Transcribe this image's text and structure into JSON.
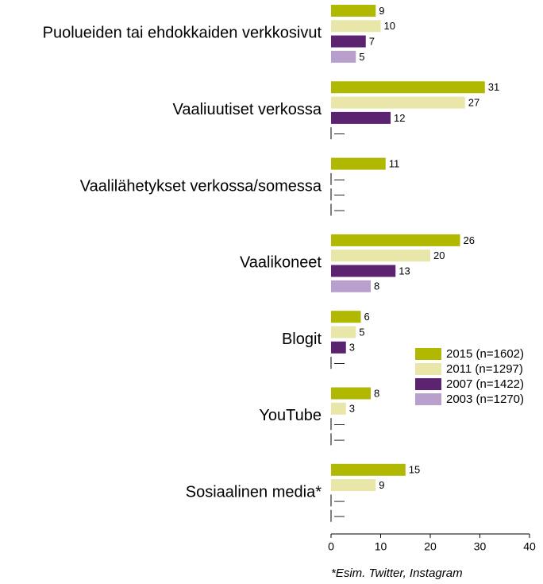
{
  "chart_data": {
    "type": "bar",
    "orientation": "horizontal",
    "categories": [
      "Puolueiden tai ehdokkaiden verkkosivut",
      "Vaaliuutiset verkossa",
      "Vaalilähetykset verkossa/somessa",
      "Vaalikoneet",
      "Blogit",
      "YouTube",
      "Sosiaalinen media*"
    ],
    "series": [
      {
        "name": "2015 (n=1602)",
        "color": "#b0b800",
        "values": [
          9,
          31,
          11,
          26,
          6,
          8,
          15
        ]
      },
      {
        "name": "2011 (n=1297)",
        "color": "#e8e6a8",
        "values": [
          10,
          27,
          null,
          20,
          5,
          3,
          9
        ],
        "value_labels": [
          null,
          null,
          "—",
          null,
          null,
          null,
          null
        ]
      },
      {
        "name": "2007 (n=1422)",
        "color": "#5c2371",
        "values": [
          7,
          12,
          null,
          13,
          3,
          null,
          null
        ],
        "value_labels": [
          null,
          null,
          "—",
          null,
          null,
          "—",
          "—"
        ]
      },
      {
        "name": "2003 (n=1270)",
        "color": "#b9a0cc",
        "values": [
          5,
          null,
          null,
          8,
          null,
          null,
          null
        ],
        "value_labels": [
          null,
          "—",
          "—",
          null,
          "—",
          "—",
          "—"
        ]
      }
    ],
    "xlim": [
      0,
      40
    ],
    "xticks": [
      0,
      10,
      20,
      30,
      40
    ],
    "legend": "right",
    "footnote": "*Esim. Twitter, Instagram"
  }
}
